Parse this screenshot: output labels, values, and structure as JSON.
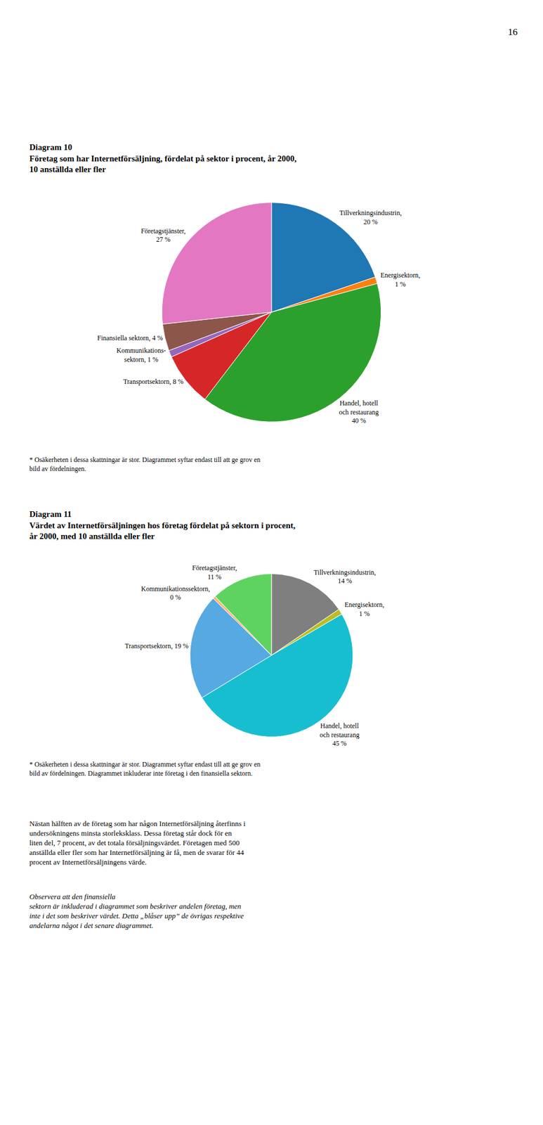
{
  "chart_data": [
    {
      "type": "pie",
      "title": "Diagram 10",
      "subtitle": "Företag som har Internetförsäljning, fördelat på sektor i procent, år 2000,\n10 anställda eller fler",
      "categories": [
        "Tillverkningsindustrin,\n20 %",
        "Energisektorn,\n1 %",
        "Handel, hotell\noch restaurang\n40 %",
        "Transportsektorn, 8 %",
        "Kommunikations-\nsektorn, 1 %",
        "Finansiella sektorn, 4 %",
        "Företagstjänster,\n27 %"
      ],
      "values": [
        20,
        1,
        40,
        8,
        1,
        4,
        27
      ],
      "data_labels": true,
      "annotations": [
        "16",
        "* Osäkerheten i dessa skattningar är stor. Diagrammet syftar endast till att ge grov en\nbild av fördelningen."
      ]
    },
    {
      "type": "pie",
      "title": "Diagram 11",
      "subtitle": "Värdet av Internetförsäljningen hos företag fördelat på sektorn i procent,\når 2000, med 10 anställda eller fler",
      "categories": [
        "Tillverkningsindustrin,\n14 %",
        "Energisektorn,\n1 %",
        "Handel, hotell\noch restaurang\n45 %",
        "Transportsektorn, 19 %",
        "Kommunikationssektorn,\n0 %",
        "Företagstjänster,\n11 %"
      ],
      "values": [
        14,
        1,
        45,
        19,
        0.5,
        11
      ],
      "data_labels": true,
      "annotations": [
        "* Osäkerheten i dessa skattningar är stor. Diagrammet syftar endast till att ge grov en\nbild av fördelningen. Diagrammet inkluderar inte företag i den finansiella sektorn.",
        "Nästan hälften av de företag som har någon Internetförsäljning återfinns i\nundersökningens minsta storleksklass. Dessa företag står dock för en\nliten del, 7 procent, av det totala försäljningsvärdet. Företagen med 500\nanställda eller fler som har Internetförsäljning är få, men de svarar för 44\nprocent av Internetförsäljningens värde.",
        "Observera att den finansiella\nsektorn är inkluderad i diagrammet som beskriver andelen företag, men\ninte i det som beskriver värdet. Detta „blåser upp” de övrigas respektive\nandelarna något i det senare diagrammet."
      ]
    }
  ]
}
